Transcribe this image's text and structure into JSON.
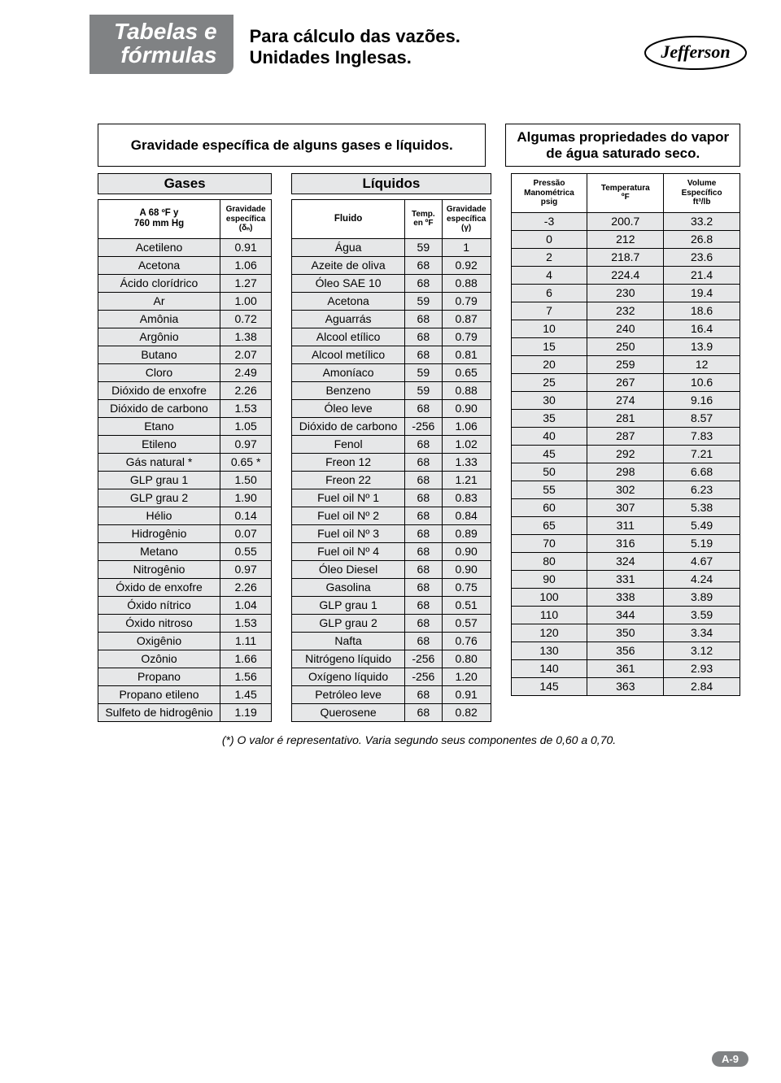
{
  "header": {
    "tab_line1": "Tabelas e",
    "tab_line2": "fórmulas",
    "subtitle_line1": "Para cálculo das vazões.",
    "subtitle_line2": "Unidades Inglesas.",
    "logo_text": "Jefferson"
  },
  "titles": {
    "left": "Gravidade específica de alguns gases e líquidos.",
    "right": "Algumas propriedades do vapor de água saturado seco."
  },
  "gases": {
    "group": "Gases",
    "col1_line1": "A 68 ºF y",
    "col1_line2": "760 mm Hg",
    "col2_line1": "Gravidade",
    "col2_line2": "específica",
    "col2_line3": "(δₙ)",
    "rows": [
      [
        "Acetileno",
        "0.91"
      ],
      [
        "Acetona",
        "1.06"
      ],
      [
        "Ácido clorídrico",
        "1.27"
      ],
      [
        "Ar",
        "1.00"
      ],
      [
        "Amônia",
        "0.72"
      ],
      [
        "Argônio",
        "1.38"
      ],
      [
        "Butano",
        "2.07"
      ],
      [
        "Cloro",
        "2.49"
      ],
      [
        "Dióxido de enxofre",
        "2.26"
      ],
      [
        "Dióxido de carbono",
        "1.53"
      ],
      [
        "Etano",
        "1.05"
      ],
      [
        "Etileno",
        "0.97"
      ],
      [
        "Gás natural *",
        "0.65 *"
      ],
      [
        "GLP grau 1",
        "1.50"
      ],
      [
        "GLP grau 2",
        "1.90"
      ],
      [
        "Hélio",
        "0.14"
      ],
      [
        "Hidrogênio",
        "0.07"
      ],
      [
        "Metano",
        "0.55"
      ],
      [
        "Nitrogênio",
        "0.97"
      ],
      [
        "Óxido de enxofre",
        "2.26"
      ],
      [
        "Óxido nítrico",
        "1.04"
      ],
      [
        "Óxido nitroso",
        "1.53"
      ],
      [
        "Oxigênio",
        "1.11"
      ],
      [
        "Ozônio",
        "1.66"
      ],
      [
        "Propano",
        "1.56"
      ],
      [
        "Propano etileno",
        "1.45"
      ],
      [
        "Sulfeto de hidrogênio",
        "1.19"
      ]
    ]
  },
  "liquidos": {
    "group": "Líquidos",
    "col1": "Fluido",
    "col2_line1": "Temp.",
    "col2_line2": "en ºF",
    "col3_line1": "Gravidade",
    "col3_line2": "específica",
    "col3_line3": "(γ)",
    "rows": [
      [
        "Água",
        "59",
        "1"
      ],
      [
        "Azeite de oliva",
        "68",
        "0.92"
      ],
      [
        "Óleo SAE 10",
        "68",
        "0.88"
      ],
      [
        "Acetona",
        "59",
        "0.79"
      ],
      [
        "Aguarrás",
        "68",
        "0.87"
      ],
      [
        "Alcool etílico",
        "68",
        "0.79"
      ],
      [
        "Alcool metílico",
        "68",
        "0.81"
      ],
      [
        "Amoníaco",
        "59",
        "0.65"
      ],
      [
        "Benzeno",
        "59",
        "0.88"
      ],
      [
        "Óleo leve",
        "68",
        "0.90"
      ],
      [
        "Dióxido de carbono",
        "-256",
        "1.06"
      ],
      [
        "Fenol",
        "68",
        "1.02"
      ],
      [
        "Freon 12",
        "68",
        "1.33"
      ],
      [
        "Freon 22",
        "68",
        "1.21"
      ],
      [
        "Fuel oil Nº 1",
        "68",
        "0.83"
      ],
      [
        "Fuel oil Nº 2",
        "68",
        "0.84"
      ],
      [
        "Fuel oil Nº 3",
        "68",
        "0.89"
      ],
      [
        "Fuel oil Nº 4",
        "68",
        "0.90"
      ],
      [
        "Óleo Diesel",
        "68",
        "0.90"
      ],
      [
        "Gasolina",
        "68",
        "0.75"
      ],
      [
        "GLP grau 1",
        "68",
        "0.51"
      ],
      [
        "GLP grau 2",
        "68",
        "0.57"
      ],
      [
        "Nafta",
        "68",
        "0.76"
      ],
      [
        "Nitrógeno líquido",
        "-256",
        "0.80"
      ],
      [
        "Oxígeno líquido",
        "-256",
        "1.20"
      ],
      [
        "Petróleo leve",
        "68",
        "0.91"
      ],
      [
        "Querosene",
        "68",
        "0.82"
      ]
    ]
  },
  "vapor": {
    "col1_line1": "Pressão",
    "col1_line2": "Manométrica",
    "col1_line3": "psig",
    "col2_line1": "Temperatura",
    "col2_line2": "ºF",
    "col3_line1": "Volume",
    "col3_line2": "Específico",
    "col3_line3": "ft³/lb",
    "rows": [
      [
        "-3",
        "200.7",
        "33.2"
      ],
      [
        "0",
        "212",
        "26.8"
      ],
      [
        "2",
        "218.7",
        "23.6"
      ],
      [
        "4",
        "224.4",
        "21.4"
      ],
      [
        "6",
        "230",
        "19.4"
      ],
      [
        "7",
        "232",
        "18.6"
      ],
      [
        "10",
        "240",
        "16.4"
      ],
      [
        "15",
        "250",
        "13.9"
      ],
      [
        "20",
        "259",
        "12"
      ],
      [
        "25",
        "267",
        "10.6"
      ],
      [
        "30",
        "274",
        "9.16"
      ],
      [
        "35",
        "281",
        "8.57"
      ],
      [
        "40",
        "287",
        "7.83"
      ],
      [
        "45",
        "292",
        "7.21"
      ],
      [
        "50",
        "298",
        "6.68"
      ],
      [
        "55",
        "302",
        "6.23"
      ],
      [
        "60",
        "307",
        "5.38"
      ],
      [
        "65",
        "311",
        "5.49"
      ],
      [
        "70",
        "316",
        "5.19"
      ],
      [
        "80",
        "324",
        "4.67"
      ],
      [
        "90",
        "331",
        "4.24"
      ],
      [
        "100",
        "338",
        "3.89"
      ],
      [
        "110",
        "344",
        "3.59"
      ],
      [
        "120",
        "350",
        "3.34"
      ],
      [
        "130",
        "356",
        "3.12"
      ],
      [
        "140",
        "361",
        "2.93"
      ],
      [
        "145",
        "363",
        "2.84"
      ]
    ]
  },
  "footnote": "(*) O valor é representativo. Varia segundo seus componentes de 0,60 a 0,70.",
  "page_number": "A-9",
  "colors": {
    "tab_bg": "#808284",
    "cell_bg": "#e6e7e8",
    "border": "#000000"
  }
}
